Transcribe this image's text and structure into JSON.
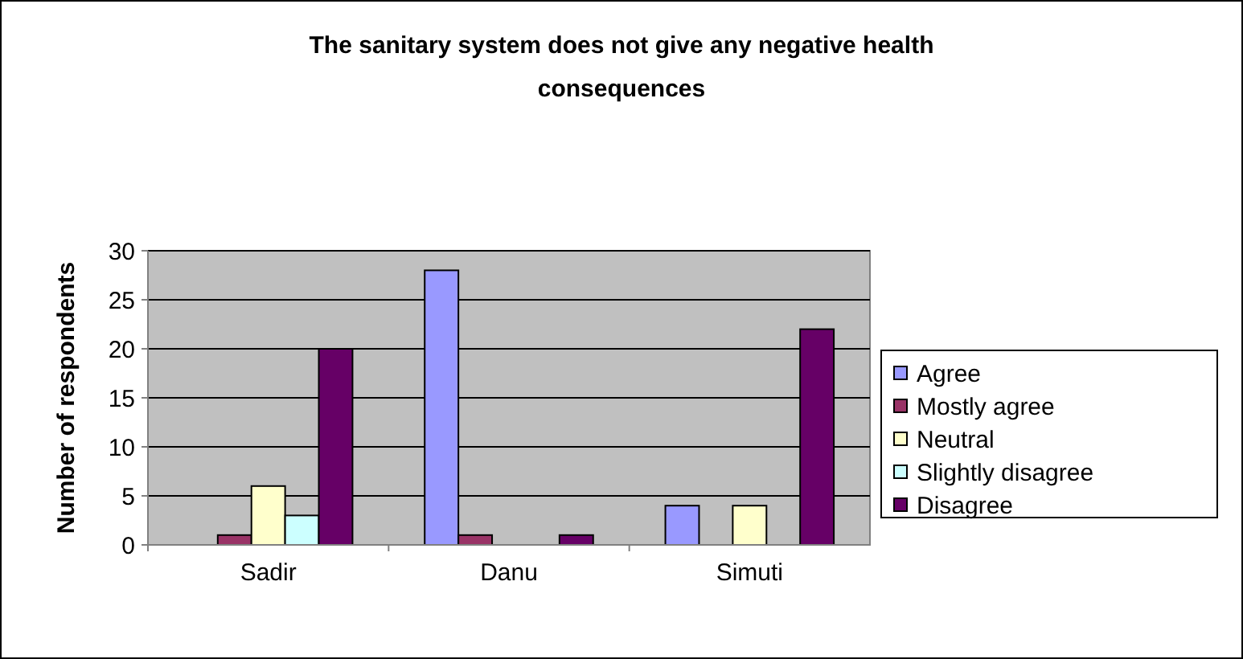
{
  "chart_data": {
    "type": "bar",
    "title": "The sanitary system does not give any negative health consequences",
    "ylabel": "Number of respondents",
    "categories": [
      "Sadir",
      "Danu",
      "Simuti"
    ],
    "series": [
      {
        "name": "Agree",
        "color": "#9999ff",
        "values": [
          0,
          28,
          4
        ]
      },
      {
        "name": "Mostly agree",
        "color": "#993366",
        "values": [
          1,
          1,
          0
        ]
      },
      {
        "name": "Neutral",
        "color": "#ffffcc",
        "values": [
          6,
          0,
          4
        ]
      },
      {
        "name": "Slightly disagree",
        "color": "#ccffff",
        "values": [
          3,
          0,
          0
        ]
      },
      {
        "name": "Disagree",
        "color": "#660066",
        "values": [
          20,
          1,
          22
        ]
      }
    ],
    "ylim": [
      0,
      30
    ],
    "yticks": [
      0,
      5,
      10,
      15,
      20,
      25,
      30
    ],
    "grid": "y",
    "legend": "right"
  }
}
